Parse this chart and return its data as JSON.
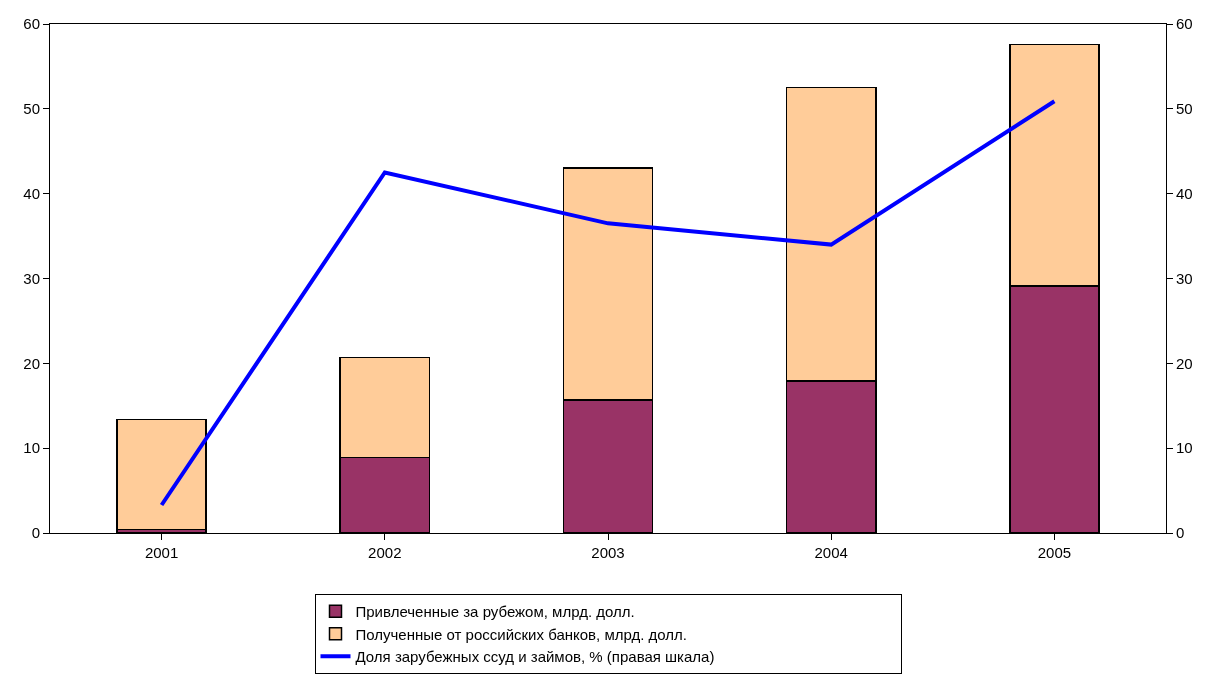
{
  "chart_data": {
    "type": "bar",
    "stacked": true,
    "categories": [
      "2001",
      "2002",
      "2003",
      "2004",
      "2005"
    ],
    "series": [
      {
        "name": "Привлеченные за рубежом, млрд. долл.",
        "color": "#993366",
        "values": [
          0.4,
          8.9,
          15.7,
          17.9,
          29.1
        ]
      },
      {
        "name": "Полученные от российских банков, млрд. долл.",
        "color": "#ffcc99",
        "values": [
          13.0,
          11.8,
          27.3,
          34.6,
          28.5
        ]
      },
      {
        "name": "Доля зарубежных ссуд и займов, % (правая шкала)",
        "type": "line",
        "axis": "y2",
        "color": "#0000ff",
        "values": [
          3.3,
          42.5,
          36.5,
          34.0,
          50.9
        ],
        "marker": "none",
        "line_style": "solid"
      }
    ],
    "ylim": [
      0,
      60
    ],
    "yticks": [
      0,
      10,
      20,
      30,
      40,
      50,
      60
    ],
    "y2lim": [
      0,
      60
    ],
    "y2ticks": [
      0,
      10,
      20,
      30,
      40,
      50,
      60
    ],
    "grid": false,
    "legend": "bottom"
  }
}
